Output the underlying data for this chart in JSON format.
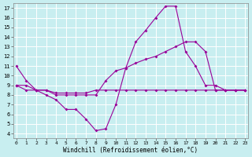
{
  "xlabel": "Windchill (Refroidissement éolien,°C)",
  "xlim": [
    -0.3,
    23.3
  ],
  "ylim": [
    3.5,
    17.5
  ],
  "yticks": [
    4,
    5,
    6,
    7,
    8,
    9,
    10,
    11,
    12,
    13,
    14,
    15,
    16,
    17
  ],
  "xticks": [
    0,
    1,
    2,
    3,
    4,
    5,
    6,
    7,
    8,
    9,
    10,
    11,
    12,
    13,
    14,
    15,
    16,
    17,
    18,
    19,
    20,
    21,
    22,
    23
  ],
  "bg_color": "#c8eef0",
  "grid_color": "#ffffff",
  "line_color": "#990099",
  "line1_x": [
    0,
    1,
    2,
    3,
    4,
    5,
    6,
    7,
    8,
    9,
    10,
    11,
    12,
    13,
    14,
    15,
    16,
    17,
    18,
    19,
    20,
    21,
    22,
    23
  ],
  "line1_y": [
    11.0,
    9.5,
    8.5,
    8.0,
    7.5,
    6.5,
    6.5,
    5.5,
    4.3,
    4.5,
    7.0,
    10.8,
    13.5,
    14.7,
    16.0,
    17.2,
    17.2,
    12.5,
    11.0,
    9.0,
    9.0,
    8.5,
    8.5,
    8.5
  ],
  "line2_x": [
    0,
    1,
    2,
    3,
    4,
    5,
    6,
    7,
    8,
    9,
    10,
    11,
    12,
    13,
    14,
    15,
    16,
    17,
    18,
    19,
    20,
    21,
    22,
    23
  ],
  "line2_y": [
    9.0,
    8.5,
    8.5,
    8.5,
    8.0,
    8.0,
    8.0,
    8.0,
    8.0,
    9.5,
    10.5,
    10.8,
    11.3,
    11.7,
    12.0,
    12.5,
    13.0,
    13.5,
    13.5,
    12.5,
    8.5,
    8.5,
    8.5,
    8.5
  ],
  "line3_x": [
    0,
    1,
    2,
    3,
    4,
    5,
    6,
    7,
    8,
    9,
    10,
    11,
    12,
    13,
    14,
    15,
    16,
    17,
    18,
    19,
    20,
    21,
    22,
    23
  ],
  "line3_y": [
    9.0,
    9.0,
    8.5,
    8.5,
    8.2,
    8.2,
    8.2,
    8.2,
    8.5,
    8.5,
    8.5,
    8.5,
    8.5,
    8.5,
    8.5,
    8.5,
    8.5,
    8.5,
    8.5,
    8.5,
    8.5,
    8.5,
    8.5,
    8.5
  ]
}
